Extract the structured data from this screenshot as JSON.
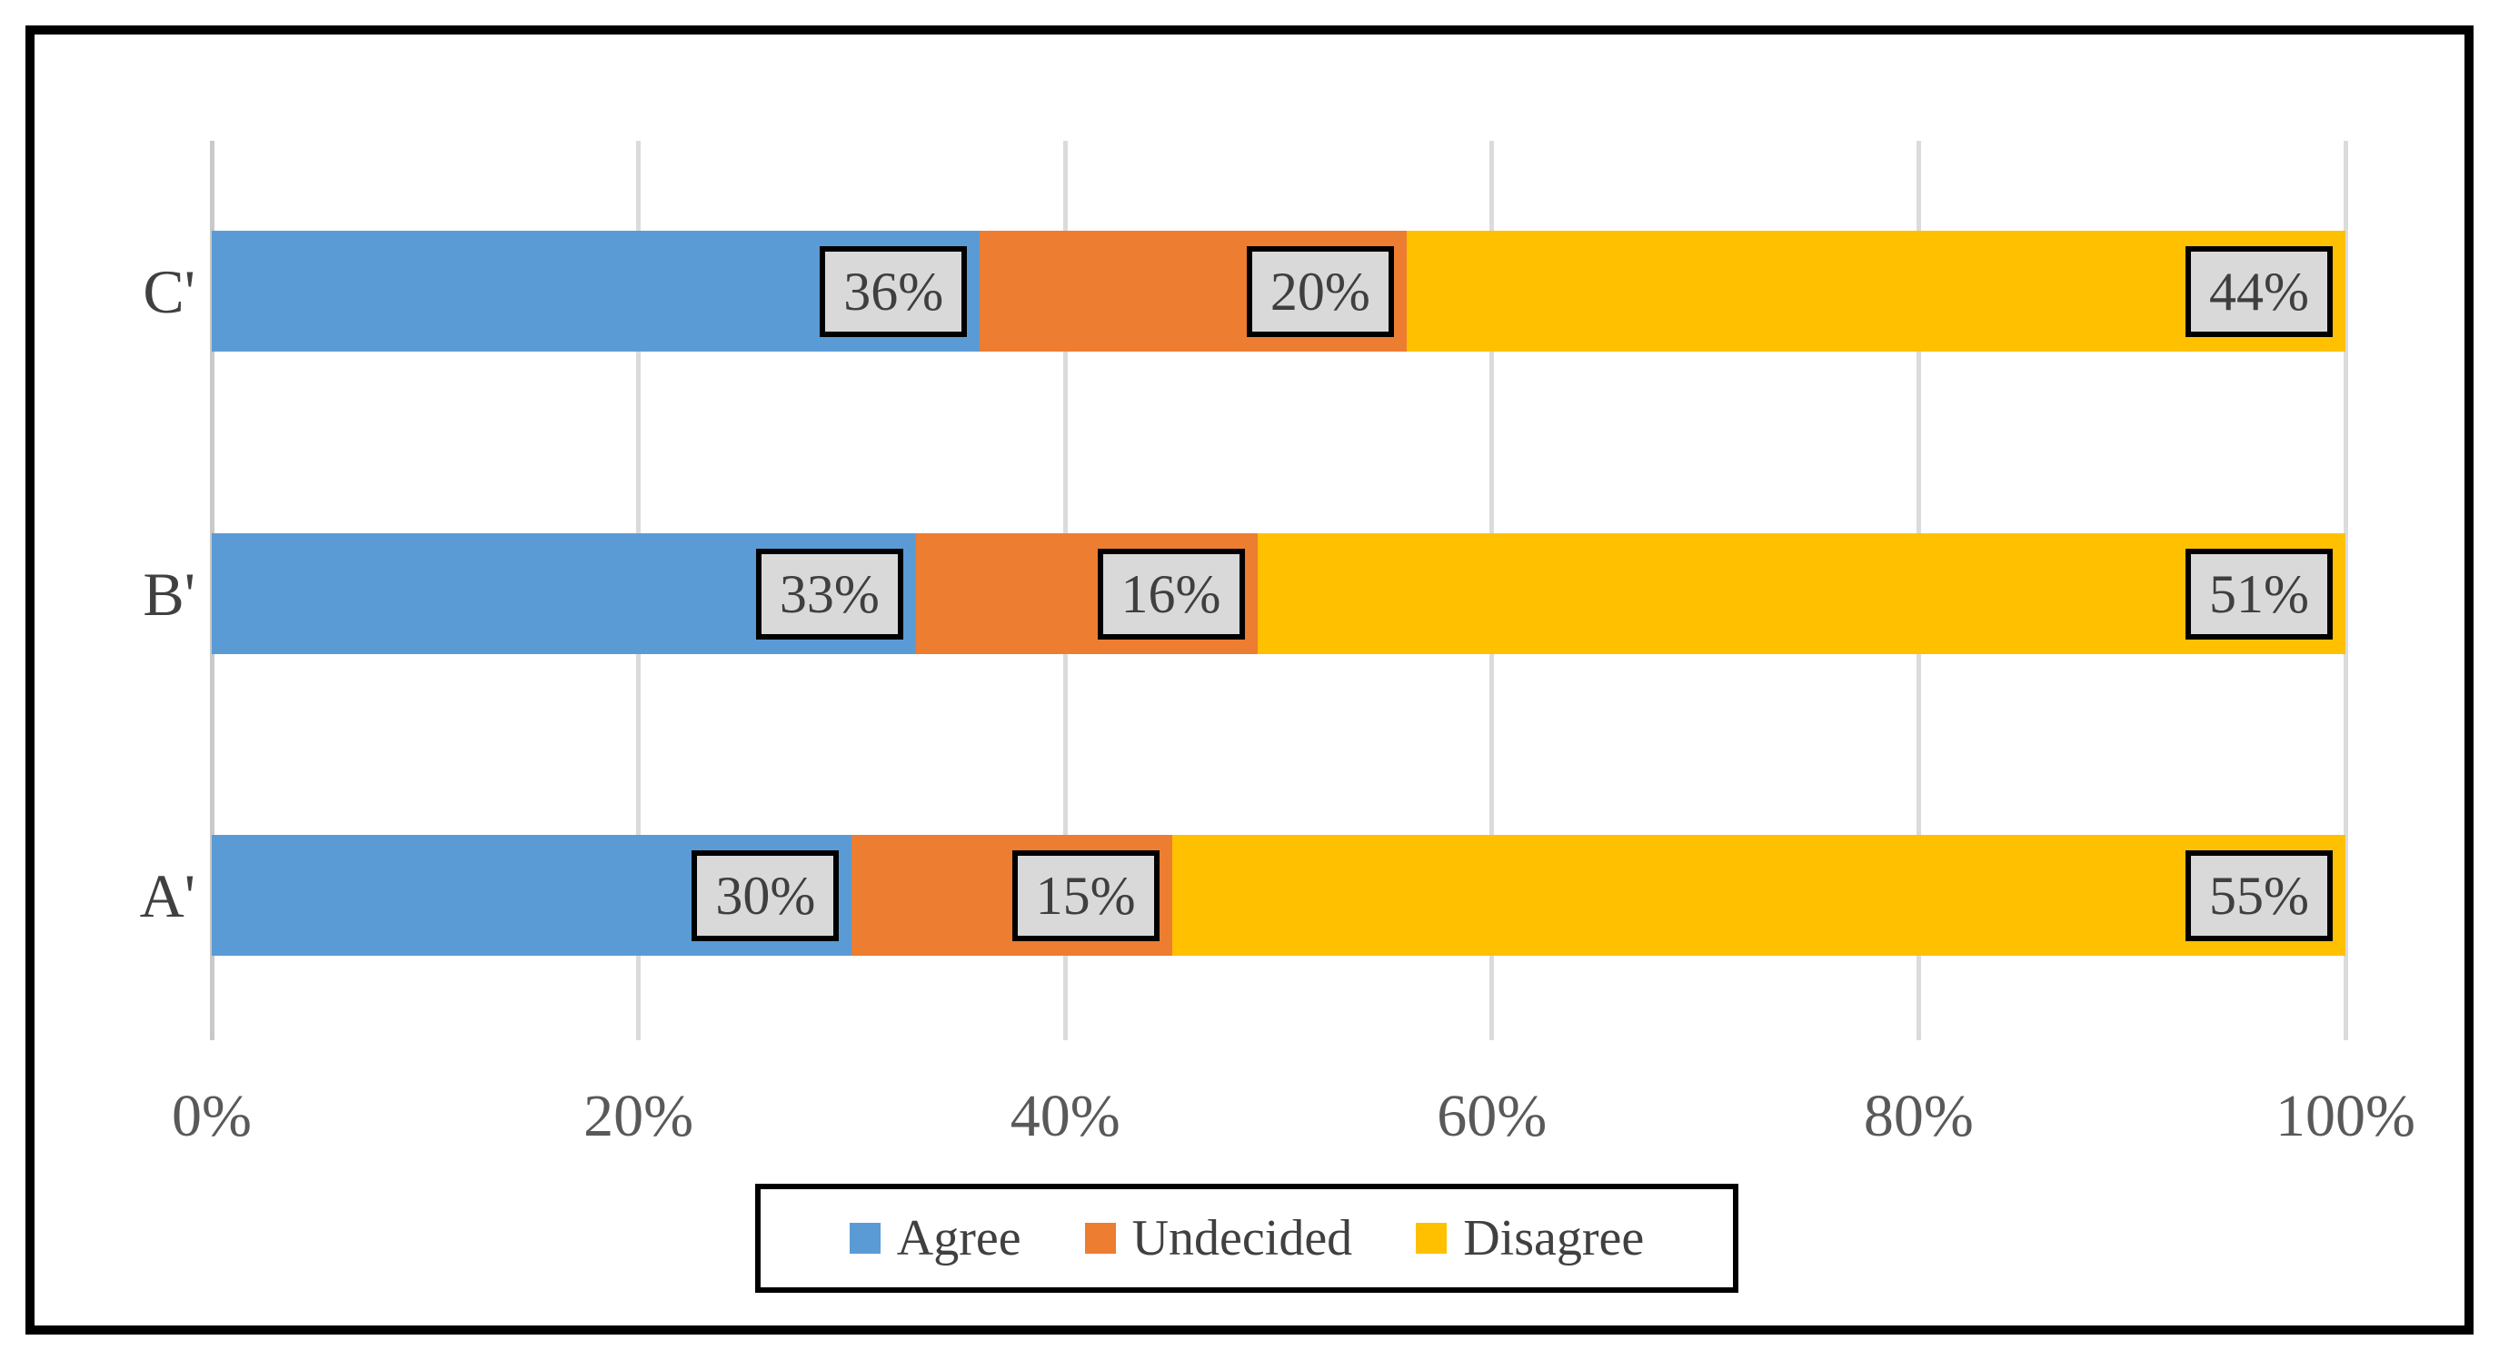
{
  "chart_data": {
    "type": "bar",
    "orientation": "horizontal",
    "stacked": true,
    "title": "",
    "xlabel": "",
    "ylabel": "",
    "categories_top_to_bottom": [
      "C'",
      "B'",
      "A'"
    ],
    "series": [
      {
        "name": "Agree",
        "color": "#5B9BD5",
        "values": [
          36,
          33,
          30
        ]
      },
      {
        "name": "Undecided",
        "color": "#ED7D31",
        "values": [
          20,
          16,
          15
        ]
      },
      {
        "name": "Disagree",
        "color": "#FFC000",
        "values": [
          44,
          51,
          55
        ]
      }
    ],
    "data_labels": [
      [
        "36%",
        "20%",
        "44%"
      ],
      [
        "33%",
        "16%",
        "51%"
      ],
      [
        "30%",
        "15%",
        "55%"
      ]
    ],
    "x_axis": {
      "range": [
        0,
        100
      ],
      "tick_values": [
        0,
        20,
        40,
        60,
        80,
        100
      ],
      "tick_labels": [
        "0%",
        "20%",
        "40%",
        "60%",
        "80%",
        "100%"
      ]
    },
    "legend": {
      "position": "bottom",
      "entries": [
        "Agree",
        "Undecided",
        "Disagree"
      ]
    },
    "grid": true,
    "colors": {
      "gridline": "#DBDBDB",
      "axis_line": "#C9C9C9",
      "data_label_fill": "#D9D9D9",
      "data_label_border": "#000000",
      "data_label_text": "#3F3F3F",
      "category_text": "#404040",
      "axis_text": "#595959",
      "legend_text": "#404040",
      "frame_border": "#000000"
    }
  }
}
